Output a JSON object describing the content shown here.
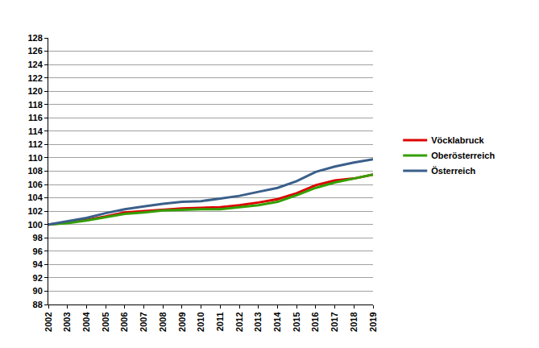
{
  "chart_data": {
    "type": "line",
    "x": [
      2002,
      2003,
      2004,
      2005,
      2006,
      2007,
      2008,
      2009,
      2010,
      2011,
      2012,
      2013,
      2014,
      2015,
      2016,
      2017,
      2018,
      2019
    ],
    "series": [
      {
        "name": "Vöcklabruck",
        "color": "#dd0000",
        "values": [
          100,
          100.3,
          100.7,
          101.2,
          101.8,
          102.0,
          102.2,
          102.4,
          102.5,
          102.6,
          102.9,
          103.3,
          103.8,
          104.7,
          105.9,
          106.6,
          106.9,
          107.5
        ]
      },
      {
        "name": "Oberösterreich",
        "color": "#33a000",
        "values": [
          100,
          100.2,
          100.6,
          101.1,
          101.6,
          101.8,
          102.1,
          102.2,
          102.3,
          102.3,
          102.6,
          102.9,
          103.4,
          104.4,
          105.5,
          106.3,
          106.9,
          107.5
        ]
      },
      {
        "name": "Österreich",
        "color": "#3a5f8a",
        "values": [
          100,
          100.5,
          101.0,
          101.7,
          102.3,
          102.7,
          103.1,
          103.4,
          103.5,
          103.9,
          104.3,
          104.9,
          105.5,
          106.5,
          107.9,
          108.7,
          109.3,
          109.8
        ]
      }
    ],
    "xlim": [
      2002,
      2019
    ],
    "xticks": [
      2002,
      2003,
      2004,
      2005,
      2006,
      2007,
      2008,
      2009,
      2010,
      2011,
      2012,
      2013,
      2014,
      2015,
      2016,
      2017,
      2018,
      2019
    ],
    "ylim": [
      88,
      128
    ],
    "yticks": [
      88,
      90,
      92,
      94,
      96,
      98,
      100,
      102,
      104,
      106,
      108,
      110,
      112,
      114,
      116,
      118,
      120,
      122,
      124,
      126,
      128
    ],
    "grid": true,
    "legend": "right"
  }
}
